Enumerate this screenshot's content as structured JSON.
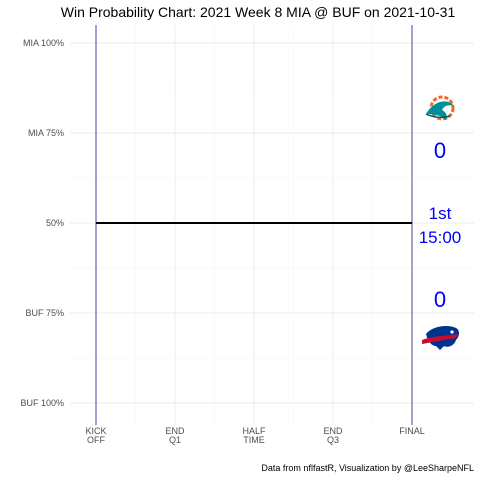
{
  "chart_data": {
    "type": "line",
    "title": "Win Probability Chart: 2021 Week 8 MIA @ BUF on 2021-10-31",
    "caption": "Data from nflfastR, Visualization by @LeeSharpeNFL",
    "y_tick_labels": [
      "MIA 100%",
      "MIA 75%",
      "50%",
      "BUF 75%",
      "BUF 100%"
    ],
    "y_tick_values": [
      1.0,
      0.75,
      0.5,
      0.25,
      0.0
    ],
    "ylim": [
      0,
      1
    ],
    "x_ticks": [
      {
        "value": 0,
        "lines": [
          "KICK",
          "OFF"
        ]
      },
      {
        "value": 15,
        "lines": [
          "END",
          "Q1"
        ]
      },
      {
        "value": 30,
        "lines": [
          "HALF",
          "TIME"
        ]
      },
      {
        "value": 45,
        "lines": [
          "END",
          "Q3"
        ]
      },
      {
        "value": 60,
        "lines": [
          "FINAL"
        ]
      }
    ],
    "xlim": [
      0,
      60
    ],
    "grid": true,
    "series": [
      {
        "values": [
          {
            "x": 0,
            "y": 0.5
          },
          {
            "x": 60,
            "y": 0.5
          }
        ],
        "color": "#000000"
      }
    ],
    "vertical_lines": [
      0,
      60
    ],
    "away": {
      "team": "MIA",
      "logo_icon": "dolphins-logo-icon",
      "score": "0",
      "color": "#008e97"
    },
    "home": {
      "team": "BUF",
      "logo_icon": "bills-logo-icon",
      "score": "0",
      "color": "#00338d"
    },
    "status": {
      "quarter": "1st",
      "clock": "15:00",
      "color": "#0000ff"
    }
  }
}
